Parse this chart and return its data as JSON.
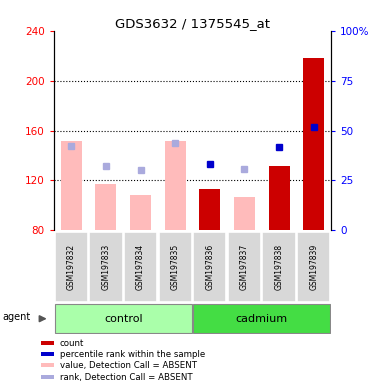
{
  "title": "GDS3632 / 1375545_at",
  "samples": [
    "GSM197832",
    "GSM197833",
    "GSM197834",
    "GSM197835",
    "GSM197836",
    "GSM197837",
    "GSM197838",
    "GSM197839"
  ],
  "groups": [
    "control",
    "control",
    "control",
    "control",
    "cadmium",
    "cadmium",
    "cadmium",
    "cadmium"
  ],
  "bar_values": [
    null,
    null,
    null,
    null,
    113,
    null,
    132,
    218
  ],
  "value_absent": [
    152,
    117,
    108,
    152,
    null,
    107,
    null,
    null
  ],
  "rank_absent": [
    148,
    132,
    128,
    150,
    null,
    129,
    null,
    null
  ],
  "rank_present": [
    null,
    null,
    null,
    null,
    133,
    null,
    147,
    163
  ],
  "ylim_left": [
    80,
    240
  ],
  "ylim_right": [
    0,
    100
  ],
  "yticks_left": [
    80,
    120,
    160,
    200,
    240
  ],
  "yticks_right": [
    0,
    25,
    50,
    75,
    100
  ],
  "left_tick_labels": [
    "80",
    "120",
    "160",
    "200",
    "240"
  ],
  "right_tick_labels": [
    "0",
    "25",
    "50",
    "75",
    "100%"
  ],
  "control_color": "#aaffaa",
  "cadmium_color": "#44dd44",
  "bar_absent_color": "#ffbbbb",
  "rank_absent_color": "#aaaadd",
  "rank_present_color": "#0000cc",
  "bar_present_color": "#cc0000",
  "legend_items": [
    {
      "color": "#cc0000",
      "label": "count"
    },
    {
      "color": "#0000cc",
      "label": "percentile rank within the sample"
    },
    {
      "color": "#ffbbbb",
      "label": "value, Detection Call = ABSENT"
    },
    {
      "color": "#aaaadd",
      "label": "rank, Detection Call = ABSENT"
    }
  ],
  "figsize": [
    3.85,
    3.84
  ],
  "dpi": 100
}
